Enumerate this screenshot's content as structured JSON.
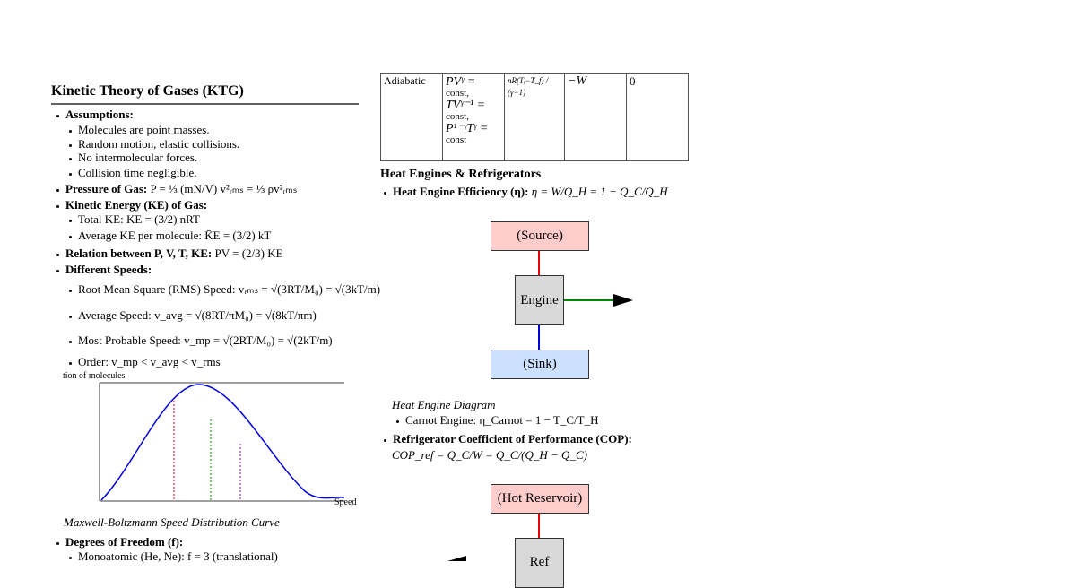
{
  "table": {
    "rows": [
      {
        "process": "Adiabatic",
        "relation": [
          "PVᵞ =",
          "const,",
          "TVᵞ⁻¹ =",
          "const,",
          "P¹⁻ᵞTᵞ =",
          "const"
        ],
        "work": "nR(Tᵢ−T_f) / (γ−1)",
        "du": "−W",
        "q": "0"
      }
    ]
  },
  "ktg": {
    "title": "Kinetic Theory of Gases (KTG)",
    "lines": [
      {
        "label": "Assumptions:"
      },
      {
        "text": "Molecules are point masses."
      },
      {
        "text": "Random motion, elastic collisions."
      },
      {
        "text": "No intermolecular forces."
      },
      {
        "text": "Collision time negligible."
      },
      {
        "label": "Pressure of Gas:",
        "text": "P = ⅓ (mN/V) v²ᵣₘₛ = ⅓ ρv²ᵣₘₛ"
      },
      {
        "label": "Kinetic Energy (KE) of Gas:"
      },
      {
        "text": "Total KE: KE = (3/2) nRT"
      },
      {
        "text": "Average KE per molecule: K̄E = (3/2) kT"
      },
      {
        "label": "Relation between P, V, T, KE:",
        "text": "PV = (2/3) KE"
      },
      {
        "label": "Different Speeds:"
      },
      {
        "text": "Root Mean Square (RMS) Speed: vᵣₘₛ = √(3RT/M₀) = √(3kT/m)"
      },
      {
        "text": "Average Speed: v_avg = √(8RT/πM₀) = √(8kT/πm)"
      },
      {
        "text": "Most Probable Speed: v_mp = √(2RT/M₀) = √(2kT/m)"
      },
      {
        "text": "Order: v_mp < v_avg < v_rms"
      },
      {
        "label": "Degrees of Freedom (f):"
      },
      {
        "text": "Monoatomic (He, Ne): f = 3 (translational)"
      }
    ],
    "figure": {
      "ylabel": "tion of molecules",
      "xlabel": "Speed",
      "caption": "Maxwell-Boltzmann Speed Distribution Curve"
    }
  },
  "engines": {
    "title": "Heat Engines & Refrigerators",
    "efficiency": {
      "label": "Heat Engine Efficiency (η):",
      "text": "η = W/Q_H = 1 − Q_C/Q_H"
    },
    "diagram1": {
      "source": "(Source)",
      "engine": "Engine",
      "sink": "(Sink)",
      "caption": "Heat Engine Diagram"
    },
    "carnot": "Carnot Engine: η_Carnot = 1 − T_C/T_H",
    "cop": {
      "label": "Refrigerator Coefficient of Performance (COP):",
      "text": "COP_ref = Q_C/W = Q_C/(Q_H − Q_C)"
    },
    "diagram2": {
      "hot": "(Hot Reservoir)",
      "ref": "Ref"
    }
  }
}
